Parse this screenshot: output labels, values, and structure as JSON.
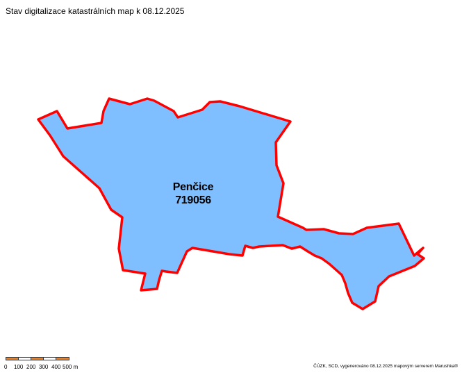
{
  "title": "Stav digitalizace katastrálních map k 08.12.2025",
  "parcel": {
    "name": "Penčice",
    "code": "719056",
    "fill_color": "#80bfff",
    "border_color": "#ff0000"
  },
  "scale_bar": {
    "labels": [
      "0",
      "100",
      "200",
      "300",
      "400",
      "500 m"
    ],
    "colors": [
      "#f07d1e",
      "#ffffff"
    ]
  },
  "footer": "ČÚZK, SCD, vygenerováno 08.12.2025 mapovým serverem Marushka®"
}
